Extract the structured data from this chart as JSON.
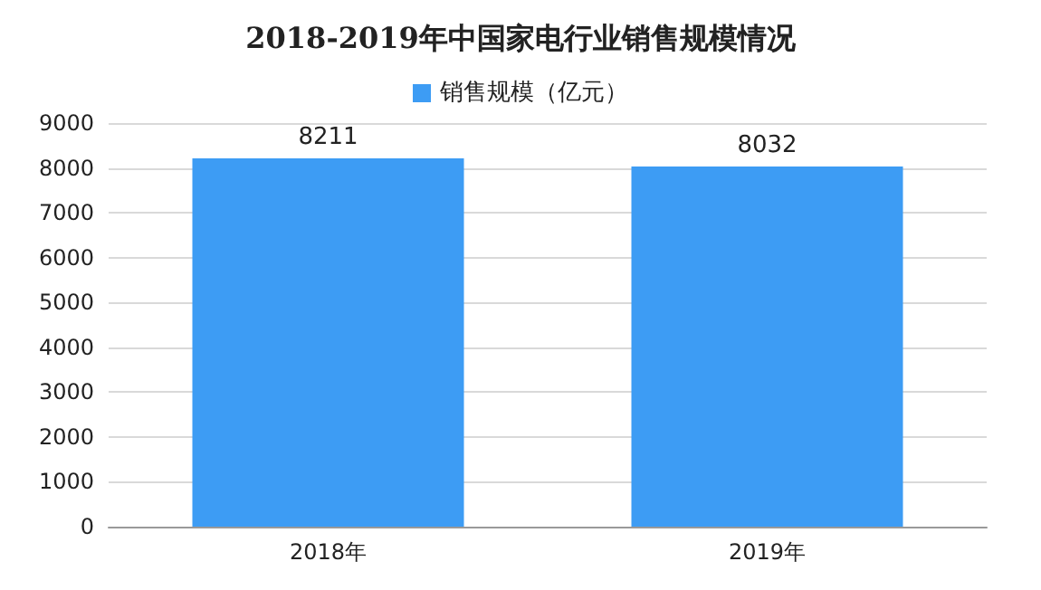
{
  "chart_data": {
    "type": "bar",
    "title": "2018-2019年中国家电行业销售规模情况",
    "categories": [
      "2018年",
      "2019年"
    ],
    "series": [
      {
        "name": "销售规模（亿元）",
        "color": "#3d9cf4",
        "values": [
          8211,
          8032
        ]
      }
    ],
    "ylim": [
      0,
      9000
    ],
    "yticks": [
      0,
      1000,
      2000,
      3000,
      4000,
      5000,
      6000,
      7000,
      8000,
      9000
    ],
    "grid": "y",
    "legend": "top",
    "data_labels": true
  }
}
